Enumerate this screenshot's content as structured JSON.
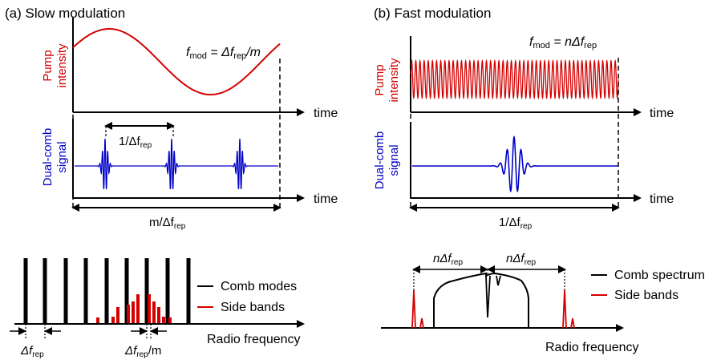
{
  "panel_a": {
    "title": "(a) Slow modulation",
    "pump_label_1": "Pump",
    "pump_label_2": "intensity",
    "comb_label_1": "Dual-comb",
    "comb_label_2": "signal",
    "time_label_1": "time",
    "time_label_2": "time",
    "fmod_f": "f",
    "fmod_sub": "mod",
    "fmod_rhs_1": " = Δf",
    "fmod_rhs_sub": "rep",
    "fmod_rhs_2": "/m",
    "period_1": "1/Δf",
    "period_1_sub": "rep",
    "period_m": "m/Δf",
    "period_m_sub": "rep",
    "legend_comb": "Comb modes",
    "legend_side": "Side bands",
    "rf_label": "Radio frequency",
    "spacing_1": "Δf",
    "spacing_1_sub": "rep",
    "spacing_2": "Δf",
    "spacing_2_sub": "rep",
    "spacing_2_tail": "/m"
  },
  "panel_b": {
    "title": "(b) Fast modulation",
    "pump_label_1": "Pump",
    "pump_label_2": "intensity",
    "comb_label_1": "Dual-comb",
    "comb_label_2": "signal",
    "time_label_1": "time",
    "time_label_2": "time",
    "fmod_f": "f",
    "fmod_sub": "mod",
    "fmod_rhs_1": " = nΔf",
    "fmod_rhs_sub": "rep",
    "period_1": "1/Δf",
    "period_1_sub": "rep",
    "n_left": "nΔf",
    "n_left_sub": "rep",
    "n_right": "nΔf",
    "n_right_sub": "rep",
    "legend_comb": "Comb spectrum",
    "legend_side": "Side bands",
    "rf_label": "Radio frequency"
  },
  "colors": {
    "pump": "#d40000",
    "signal": "#0000c8",
    "comb": "#000000",
    "sideband": "#d40000"
  }
}
